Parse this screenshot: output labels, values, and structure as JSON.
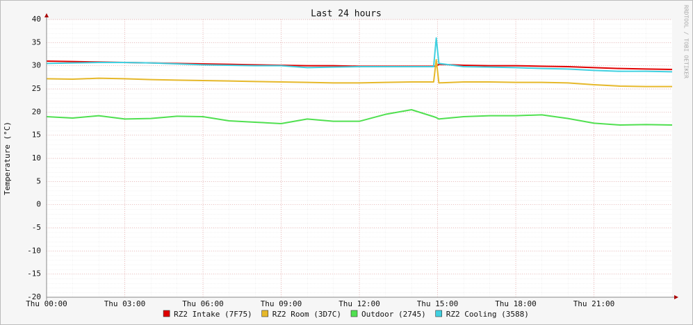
{
  "chart_data": {
    "type": "line",
    "title": "Last 24 hours",
    "y_label": "Temperature (°C)",
    "side_text": "RRDTOOL / TOBI OETIKER",
    "x": [
      0,
      1,
      2,
      3,
      4,
      5,
      6,
      7,
      8,
      9,
      10,
      11,
      12,
      13,
      14,
      14.85,
      14.95,
      15.05,
      16,
      17,
      18,
      19,
      20,
      21,
      22,
      23,
      24
    ],
    "xlim": [
      0,
      24
    ],
    "xticks": [
      {
        "value": 0,
        "label": "Thu 00:00"
      },
      {
        "value": 3,
        "label": "Thu 03:00"
      },
      {
        "value": 6,
        "label": "Thu 06:00"
      },
      {
        "value": 9,
        "label": "Thu 09:00"
      },
      {
        "value": 12,
        "label": "Thu 12:00"
      },
      {
        "value": 15,
        "label": "Thu 15:00"
      },
      {
        "value": 18,
        "label": "Thu 18:00"
      },
      {
        "value": 21,
        "label": "Thu 21:00"
      }
    ],
    "ylim": [
      -20,
      40
    ],
    "yticks": [
      -20,
      -15,
      -10,
      -5,
      0,
      5,
      10,
      15,
      20,
      25,
      30,
      35,
      40
    ],
    "grid": true,
    "legend": "bottom",
    "series": [
      {
        "name": "RZ2 Intake (7F75)",
        "color": "#e00000",
        "values": [
          31,
          30.9,
          30.8,
          30.7,
          30.6,
          30.5,
          30.4,
          30.3,
          30.2,
          30.1,
          30.0,
          30.0,
          29.9,
          29.9,
          29.9,
          29.9,
          29.9,
          30.3,
          30.1,
          30.0,
          30.0,
          29.9,
          29.8,
          29.6,
          29.4,
          29.3,
          29.2
        ]
      },
      {
        "name": "RZ2 Room (3D7C)",
        "color": "#e6b82a",
        "values": [
          27.2,
          27.1,
          27.3,
          27.2,
          27.0,
          26.9,
          26.8,
          26.7,
          26.6,
          26.5,
          26.4,
          26.3,
          26.3,
          26.4,
          26.5,
          26.5,
          31.3,
          26.3,
          26.5,
          26.5,
          26.4,
          26.4,
          26.3,
          25.9,
          25.6,
          25.5,
          25.5
        ]
      },
      {
        "name": "Outdoor (2745)",
        "color": "#50e050",
        "values": [
          19,
          18.7,
          19.2,
          18.5,
          18.6,
          19.1,
          19,
          18.1,
          17.8,
          17.5,
          18.5,
          18,
          18,
          19.5,
          20.5,
          19,
          18.8,
          18.5,
          19,
          19.2,
          19.2,
          19.4,
          18.6,
          17.6,
          17.2,
          17.3,
          17.2
        ]
      },
      {
        "name": "RZ2 Cooling (3588)",
        "color": "#40d0e0",
        "values": [
          30.5,
          30.6,
          30.7,
          30.7,
          30.6,
          30.4,
          30.2,
          30.1,
          30.0,
          30.0,
          29.6,
          29.7,
          29.8,
          29.8,
          29.8,
          29.8,
          36.0,
          30.5,
          29.8,
          29.7,
          29.6,
          29.4,
          29.3,
          29.0,
          28.8,
          28.8,
          28.7
        ]
      }
    ]
  }
}
